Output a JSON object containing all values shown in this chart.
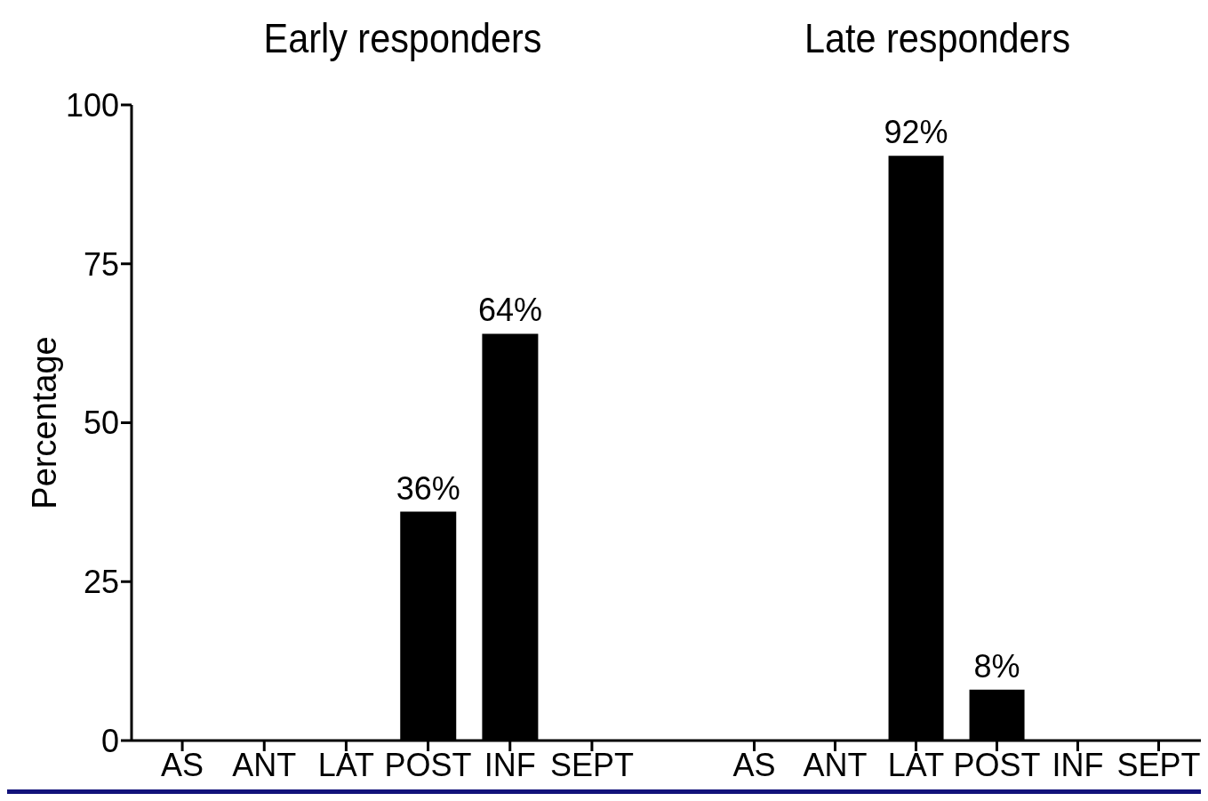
{
  "chart_data": [
    {
      "type": "bar",
      "title": "Early responders",
      "ylabel": "Percentage",
      "categories": [
        "AS",
        "ANT",
        "LAT",
        "POST",
        "INF",
        "SEPT"
      ],
      "values": [
        0,
        0,
        0,
        36,
        64,
        0
      ],
      "value_labels": [
        null,
        null,
        null,
        "36%",
        "64%",
        null
      ],
      "color": "#000000",
      "ylim": [
        0,
        100
      ],
      "yticks": [
        0,
        25,
        50,
        75,
        100
      ]
    },
    {
      "type": "bar",
      "title": "Late responders",
      "categories": [
        "AS",
        "ANT",
        "LAT",
        "POST",
        "INF",
        "SEPT"
      ],
      "values": [
        0,
        0,
        92,
        8,
        0,
        0
      ],
      "value_labels": [
        null,
        null,
        "92%",
        "8%",
        null,
        null
      ],
      "color": "#000000",
      "ylim": [
        0,
        100
      ],
      "yticks": [
        0,
        25,
        50,
        75,
        100
      ],
      "tick_labels": "x"
    }
  ]
}
